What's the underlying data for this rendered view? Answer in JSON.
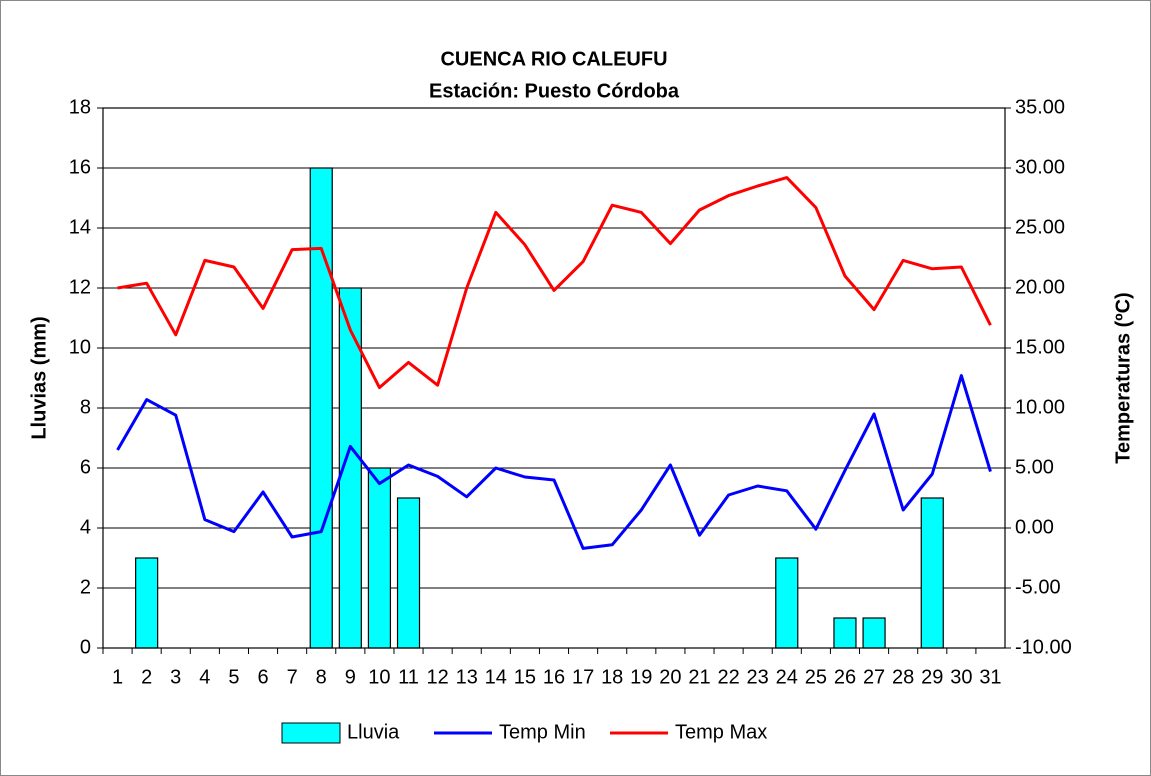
{
  "chart_data": {
    "type": "bar",
    "title": "CUENCA RIO CALEUFU",
    "subtitle": "Estación: Puesto Córdoba",
    "y_label": "Lluvias (mm)",
    "y2_label": "Temperaturas (ºC)",
    "categories": [
      "1",
      "2",
      "3",
      "4",
      "5",
      "6",
      "7",
      "8",
      "9",
      "10",
      "11",
      "12",
      "13",
      "14",
      "15",
      "16",
      "17",
      "18",
      "19",
      "20",
      "21",
      "22",
      "23",
      "24",
      "25",
      "26",
      "27",
      "28",
      "29",
      "30",
      "31"
    ],
    "series": [
      {
        "name": "Lluvia",
        "type": "bar",
        "color": "#00ffff",
        "values": [
          0,
          3,
          0,
          0,
          0,
          0,
          0,
          16,
          12,
          6,
          5,
          0,
          0,
          0,
          0,
          0,
          0,
          0,
          0,
          0,
          0,
          0,
          0,
          3,
          0,
          1,
          1,
          0,
          5,
          0,
          0
        ]
      },
      {
        "name": "Temp Min",
        "type": "line",
        "axis": "y2",
        "color": "#0000ff",
        "values": [
          6.5,
          10.7,
          9.4,
          0.7,
          -0.3,
          3.0,
          -0.75,
          -0.3,
          6.8,
          3.7,
          5.25,
          4.3,
          2.6,
          5.0,
          4.25,
          4.0,
          -1.7,
          -1.4,
          1.5,
          5.25,
          -0.6,
          2.75,
          3.5,
          3.1,
          -0.1,
          4.8,
          9.5,
          1.5,
          4.5,
          12.7,
          4.7
        ]
      },
      {
        "name": "Temp Max",
        "type": "line",
        "axis": "y2",
        "color": "#ff0000",
        "values": [
          20.0,
          20.4,
          16.1,
          22.3,
          21.75,
          18.3,
          23.2,
          23.3,
          16.5,
          11.7,
          13.8,
          11.9,
          20.0,
          26.3,
          23.6,
          19.8,
          22.2,
          26.9,
          26.3,
          23.7,
          26.5,
          27.7,
          28.5,
          29.2,
          26.7,
          21.0,
          18.2,
          22.3,
          21.6,
          21.75,
          16.9
        ]
      }
    ],
    "ylim": [
      0,
      18
    ],
    "yticks": [
      0,
      2,
      4,
      6,
      8,
      10,
      12,
      14,
      16,
      18
    ],
    "y2lim": [
      -10,
      35
    ],
    "y2ticks": [
      {
        "value": -10,
        "label": "-10.00"
      },
      {
        "value": -5,
        "label": "-5.00"
      },
      {
        "value": 0,
        "label": "0.00"
      },
      {
        "value": 5,
        "label": "5.00"
      },
      {
        "value": 10,
        "label": "10.00"
      },
      {
        "value": 15,
        "label": "15.00"
      },
      {
        "value": 20,
        "label": "20.00"
      },
      {
        "value": 25,
        "label": "25.00"
      },
      {
        "value": 30,
        "label": "30.00"
      },
      {
        "value": 35,
        "label": "35.00"
      }
    ],
    "grid": true,
    "legend": "bottom"
  }
}
